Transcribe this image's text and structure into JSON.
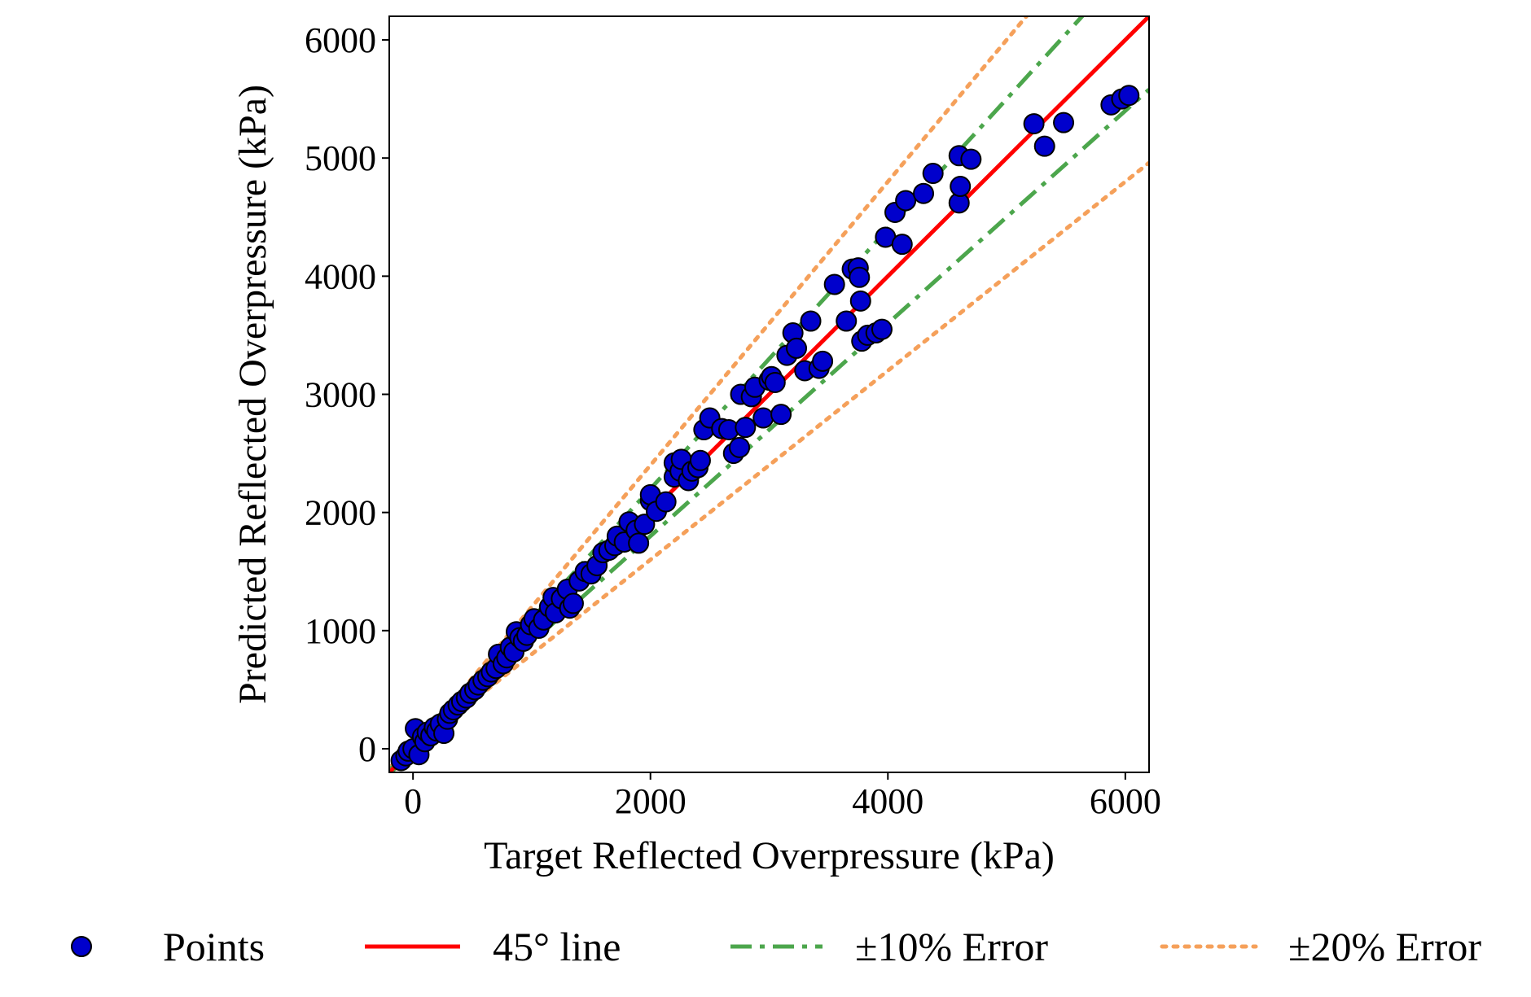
{
  "chart_data": {
    "type": "scatter",
    "xlabel": "Target Reflected Overpressure (kPa)",
    "ylabel": "Predicted Reflected Overpressure (kPa)",
    "xlim": [
      -200,
      6200
    ],
    "ylim": [
      -200,
      6200
    ],
    "xticks": [
      0,
      2000,
      4000,
      6000
    ],
    "yticks": [
      0,
      1000,
      2000,
      3000,
      4000,
      5000,
      6000
    ],
    "xtick_labels": [
      "0",
      "2000",
      "4000",
      "6000"
    ],
    "ytick_labels": [
      "0",
      "1000",
      "2000",
      "3000",
      "4000",
      "5000",
      "6000"
    ],
    "grid": false,
    "legend_position": "bottom",
    "colors": {
      "points_fill": "#0000cc",
      "points_edge": "#000000",
      "line_45": "#ff0000",
      "err10": "#4ca64c",
      "err20": "#f5a05a"
    },
    "legend": [
      {
        "label": "Points",
        "style": "marker"
      },
      {
        "label": "45° line",
        "style": "solid"
      },
      {
        "label": "±10% Error",
        "style": "dashdot"
      },
      {
        "label": "±20% Error",
        "style": "dotted"
      }
    ],
    "reference_lines": [
      {
        "name": "45° line",
        "slope": 1.0,
        "style": "solid"
      },
      {
        "name": "+10%",
        "slope": 1.1,
        "style": "dashdot"
      },
      {
        "name": "-10%",
        "slope": 0.9,
        "style": "dashdot"
      },
      {
        "name": "+20%",
        "slope": 1.2,
        "style": "dotted"
      },
      {
        "name": "-20%",
        "slope": 0.8,
        "style": "dotted"
      }
    ],
    "series": [
      {
        "name": "Points",
        "points": [
          [
            -100,
            -100
          ],
          [
            -60,
            -60
          ],
          [
            -40,
            -20
          ],
          [
            0,
            0
          ],
          [
            20,
            170
          ],
          [
            50,
            -50
          ],
          [
            80,
            100
          ],
          [
            100,
            60
          ],
          [
            120,
            140
          ],
          [
            150,
            110
          ],
          [
            180,
            180
          ],
          [
            200,
            150
          ],
          [
            230,
            210
          ],
          [
            260,
            130
          ],
          [
            290,
            250
          ],
          [
            310,
            300
          ],
          [
            340,
            330
          ],
          [
            380,
            370
          ],
          [
            410,
            400
          ],
          [
            450,
            430
          ],
          [
            480,
            470
          ],
          [
            520,
            500
          ],
          [
            550,
            540
          ],
          [
            590,
            580
          ],
          [
            630,
            610
          ],
          [
            660,
            650
          ],
          [
            700,
            680
          ],
          [
            720,
            800
          ],
          [
            760,
            720
          ],
          [
            790,
            770
          ],
          [
            820,
            860
          ],
          [
            850,
            820
          ],
          [
            870,
            990
          ],
          [
            900,
            940
          ],
          [
            930,
            910
          ],
          [
            960,
            960
          ],
          [
            990,
            1050
          ],
          [
            1020,
            1100
          ],
          [
            1060,
            1020
          ],
          [
            1100,
            1090
          ],
          [
            1150,
            1200
          ],
          [
            1180,
            1280
          ],
          [
            1200,
            1150
          ],
          [
            1250,
            1270
          ],
          [
            1300,
            1350
          ],
          [
            1320,
            1190
          ],
          [
            1350,
            1230
          ],
          [
            1400,
            1420
          ],
          [
            1450,
            1500
          ],
          [
            1500,
            1480
          ],
          [
            1550,
            1550
          ],
          [
            1600,
            1660
          ],
          [
            1650,
            1680
          ],
          [
            1700,
            1720
          ],
          [
            1720,
            1800
          ],
          [
            1780,
            1750
          ],
          [
            1820,
            1920
          ],
          [
            1880,
            1850
          ],
          [
            1900,
            1740
          ],
          [
            1950,
            1900
          ],
          [
            2000,
            2100
          ],
          [
            2000,
            2150
          ],
          [
            2050,
            2010
          ],
          [
            2130,
            2090
          ],
          [
            2200,
            2300
          ],
          [
            2200,
            2420
          ],
          [
            2250,
            2350
          ],
          [
            2260,
            2450
          ],
          [
            2320,
            2270
          ],
          [
            2350,
            2350
          ],
          [
            2400,
            2380
          ],
          [
            2420,
            2440
          ],
          [
            2450,
            2700
          ],
          [
            2500,
            2800
          ],
          [
            2600,
            2710
          ],
          [
            2660,
            2700
          ],
          [
            2700,
            2500
          ],
          [
            2750,
            2550
          ],
          [
            2760,
            3000
          ],
          [
            2800,
            2720
          ],
          [
            2850,
            2980
          ],
          [
            2880,
            3060
          ],
          [
            2950,
            2800
          ],
          [
            3000,
            3120
          ],
          [
            3020,
            3150
          ],
          [
            3050,
            3100
          ],
          [
            3100,
            2830
          ],
          [
            3150,
            3330
          ],
          [
            3200,
            3520
          ],
          [
            3230,
            3390
          ],
          [
            3300,
            3200
          ],
          [
            3350,
            3620
          ],
          [
            3420,
            3220
          ],
          [
            3450,
            3280
          ],
          [
            3550,
            3930
          ],
          [
            3650,
            3620
          ],
          [
            3700,
            4060
          ],
          [
            3750,
            4070
          ],
          [
            3760,
            3990
          ],
          [
            3770,
            3790
          ],
          [
            3780,
            3450
          ],
          [
            3830,
            3500
          ],
          [
            3900,
            3520
          ],
          [
            3950,
            3550
          ],
          [
            3980,
            4330
          ],
          [
            4060,
            4540
          ],
          [
            4120,
            4270
          ],
          [
            4150,
            4640
          ],
          [
            4300,
            4700
          ],
          [
            4380,
            4870
          ],
          [
            4600,
            4620
          ],
          [
            4600,
            5020
          ],
          [
            4610,
            4760
          ],
          [
            4700,
            4990
          ],
          [
            5230,
            5290
          ],
          [
            5320,
            5100
          ],
          [
            5480,
            5300
          ],
          [
            5880,
            5450
          ],
          [
            5970,
            5500
          ],
          [
            6030,
            5530
          ]
        ]
      }
    ]
  }
}
